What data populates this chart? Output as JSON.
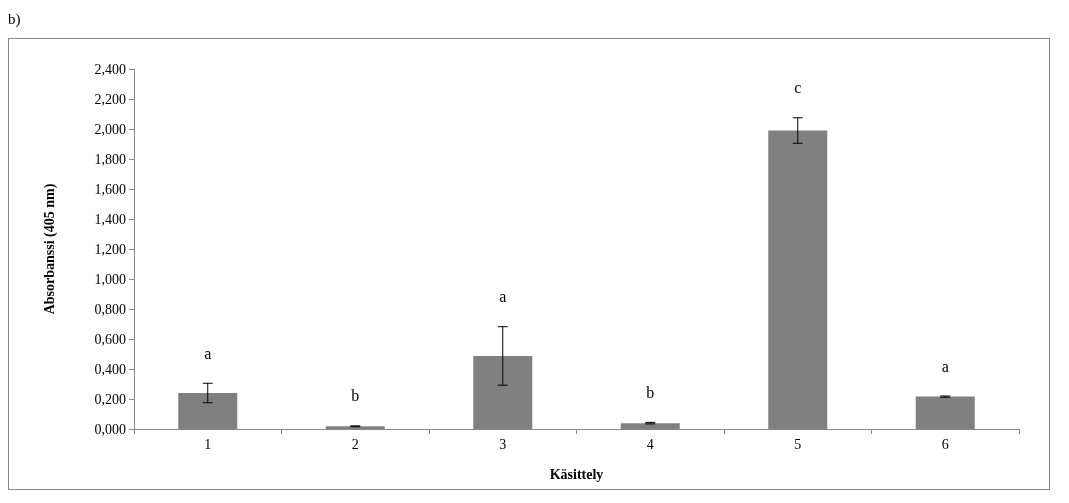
{
  "chart_data": {
    "type": "bar",
    "title": "b)",
    "xlabel": "Käsittely",
    "ylabel": "Absorbanssi (405 nm)",
    "categories": [
      "1",
      "2",
      "3",
      "4",
      "5",
      "6"
    ],
    "values": [
      0.24,
      0.018,
      0.487,
      0.039,
      1.99,
      0.216
    ],
    "errors": [
      0.065,
      0.003,
      0.195,
      0.005,
      0.085,
      0.004
    ],
    "color": "#808080",
    "ylim": [
      0,
      2.4
    ],
    "yticks": [
      {
        "value": 0,
        "label": "0,000"
      },
      {
        "value": 0.2,
        "label": "0,200"
      },
      {
        "value": 0.4,
        "label": "0,400"
      },
      {
        "value": 0.6,
        "label": "0,600"
      },
      {
        "value": 0.8,
        "label": "0,800"
      },
      {
        "value": 1,
        "label": "1,000"
      },
      {
        "value": 1.2,
        "label": "1,200"
      },
      {
        "value": 1.4,
        "label": "1,400"
      },
      {
        "value": 1.6,
        "label": "1,600"
      },
      {
        "value": 1.8,
        "label": "1,800"
      },
      {
        "value": 2,
        "label": "2,000"
      },
      {
        "value": 2.2,
        "label": "2,200"
      },
      {
        "value": 2.4,
        "label": "2,400"
      }
    ],
    "annotations": [
      "a",
      "b",
      "a",
      "b",
      "c",
      "a"
    ],
    "grid": false
  }
}
